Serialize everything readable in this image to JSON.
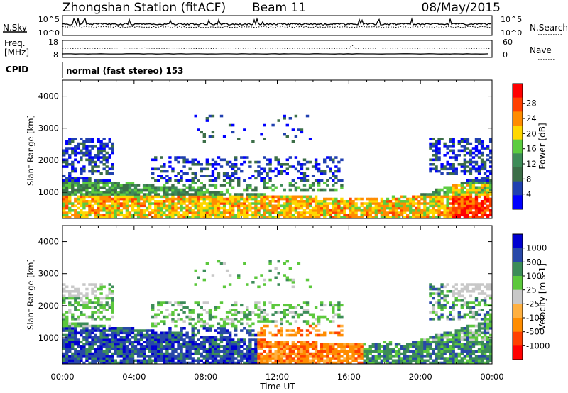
{
  "header": {
    "station": "Zhongshan Station (fitACF)",
    "beam": "Beam 11",
    "date": "08/May/2015"
  },
  "noise_panel": {
    "left_label": "N.Sky",
    "right_label": "N.Search",
    "left_ticks": [
      "10^5",
      "10^0"
    ],
    "right_ticks": [
      "10^5",
      "10^0"
    ]
  },
  "freq_panel": {
    "left_label_1": "Freq.",
    "left_label_2": "[MHz]",
    "right_label": "Nave",
    "left_ticks": [
      "18",
      "8"
    ],
    "right_ticks": [
      "60",
      "0"
    ]
  },
  "cpid": {
    "label": "CPID",
    "value": "normal (fast stereo) 153"
  },
  "colors": {
    "power_scale": [
      "#0000ff",
      "#2040b0",
      "#3c6e48",
      "#3e8c58",
      "#5ccc40",
      "#ffd800",
      "#ff8c00",
      "#ff4000",
      "#ff0000"
    ],
    "velocity_scale": [
      "#ff0000",
      "#ff4000",
      "#ff8c00",
      "#ffb040",
      "#c8c8c8",
      "#5cc83c",
      "#3c8c58",
      "#2848a8",
      "#0000d0"
    ]
  },
  "chart_data": [
    {
      "type": "heatmap",
      "name": "power",
      "title": "",
      "xlabel": "",
      "ylabel": "Slant Range [km]",
      "yticks": [
        "1000",
        "2000",
        "3000",
        "4000"
      ],
      "ylim": [
        180,
        4500
      ],
      "colorbar": {
        "label": "Power [dB]",
        "ticks": [
          "4",
          "8",
          "12",
          "16",
          "20",
          "24",
          "28"
        ],
        "range": [
          0,
          32
        ]
      }
    },
    {
      "type": "heatmap",
      "name": "velocity",
      "title": "",
      "xlabel": "Time UT",
      "ylabel": "Slant Range [km]",
      "yticks": [
        "1000",
        "2000",
        "3000",
        "4000"
      ],
      "ylim": [
        180,
        4500
      ],
      "xticks": [
        "00:00",
        "04:00",
        "08:00",
        "12:00",
        "16:00",
        "20:00",
        "00:00"
      ],
      "colorbar": {
        "label": "Velocity [m s-1]",
        "ticks": [
          "1000",
          "500",
          "100",
          "25",
          "-25",
          "-100",
          "-500",
          "-1000"
        ]
      }
    }
  ]
}
